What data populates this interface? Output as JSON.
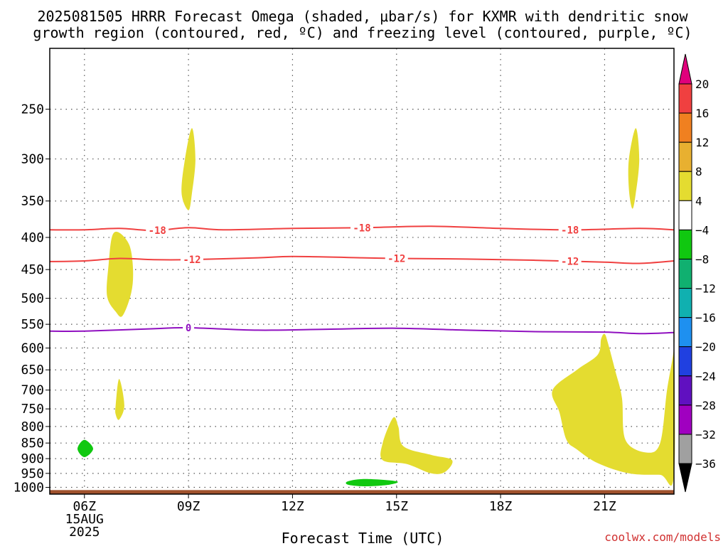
{
  "chart_data": {
    "type": "contour",
    "title_line1": "2025081505 HRRR Forecast Omega (shaded, μbar/s) for KXMR with dendritic snow",
    "title_line2": "growth region (contoured, red, ºC) and freezing level (contoured, purple, ºC)",
    "xlabel": "Forecast Time (UTC)",
    "ylabel": "",
    "watermark": "coolwx.com/models",
    "x_ticks": [
      {
        "hour": 6,
        "label": "06Z",
        "sub1": "15AUG",
        "sub2": "2025"
      },
      {
        "hour": 9,
        "label": "09Z",
        "sub1": "",
        "sub2": ""
      },
      {
        "hour": 12,
        "label": "12Z",
        "sub1": "",
        "sub2": ""
      },
      {
        "hour": 15,
        "label": "15Z",
        "sub1": "",
        "sub2": ""
      },
      {
        "hour": 18,
        "label": "18Z",
        "sub1": "",
        "sub2": ""
      },
      {
        "hour": 21,
        "label": "21Z",
        "sub1": "",
        "sub2": ""
      }
    ],
    "x_range_hours": [
      5,
      23
    ],
    "y_ticks_hpa": [
      250,
      300,
      350,
      400,
      450,
      500,
      550,
      600,
      650,
      700,
      750,
      800,
      850,
      900,
      950,
      1000
    ],
    "y_range_hpa": [
      200,
      1025
    ],
    "y_scale": "log",
    "grid": true,
    "colorbar": {
      "labels": [
        "20",
        "16",
        "12",
        "8",
        "4",
        "−4",
        "−8",
        "−12",
        "−16",
        "−20",
        "−24",
        "−28",
        "−32",
        "−36"
      ],
      "colors": [
        "#e0007c",
        "#f04040",
        "#f08020",
        "#e8b030",
        "#e4dc30",
        "#ffffff",
        "#10c810",
        "#10b070",
        "#10b0b0",
        "#1e90f0",
        "#2040e0",
        "#6010c0",
        "#a000c0",
        "#a0a0a0",
        "#000000"
      ]
    },
    "contours": [
      {
        "name": "snow-growth-minus18",
        "label": "-18",
        "color": "#f04040",
        "points": [
          [
            5,
            389
          ],
          [
            6,
            389
          ],
          [
            7,
            387
          ],
          [
            8,
            390
          ],
          [
            9,
            386
          ],
          [
            10,
            389
          ],
          [
            12,
            387
          ],
          [
            14,
            386
          ],
          [
            16,
            384
          ],
          [
            18,
            387
          ],
          [
            20,
            389
          ],
          [
            22,
            387
          ],
          [
            23,
            389
          ]
        ],
        "label_hours": [
          8.1,
          14.0,
          20.0
        ]
      },
      {
        "name": "snow-growth-minus12",
        "label": "-12",
        "color": "#f04040",
        "points": [
          [
            5,
            437
          ],
          [
            6,
            436
          ],
          [
            7,
            432
          ],
          [
            8,
            434
          ],
          [
            9,
            434
          ],
          [
            11,
            431
          ],
          [
            12,
            429
          ],
          [
            14,
            431
          ],
          [
            15,
            432
          ],
          [
            17,
            433
          ],
          [
            19,
            435
          ],
          [
            21,
            438
          ],
          [
            22,
            440
          ],
          [
            23,
            436
          ]
        ],
        "label_hours": [
          9.1,
          15.0,
          20.0
        ]
      },
      {
        "name": "freezing-level",
        "label": "0",
        "color": "#9010c0",
        "points": [
          [
            5,
            564
          ],
          [
            6,
            564
          ],
          [
            8,
            559
          ],
          [
            9,
            557
          ],
          [
            11,
            562
          ],
          [
            13,
            560
          ],
          [
            15,
            558
          ],
          [
            17,
            562
          ],
          [
            19,
            565
          ],
          [
            21,
            566
          ],
          [
            22,
            569
          ],
          [
            23,
            567
          ]
        ],
        "label_hours": [
          9.0
        ]
      }
    ],
    "omega_regions": [
      {
        "name": "omega-positive-region-1",
        "value_band": "4 to 8",
        "color": "#e4dc30",
        "points": [
          [
            8.9,
            300
          ],
          [
            9.1,
            268
          ],
          [
            9.2,
            300
          ],
          [
            9.1,
            340
          ],
          [
            9.0,
            362
          ],
          [
            8.8,
            340
          ]
        ]
      },
      {
        "name": "omega-positive-region-2",
        "value_band": "4 to 8",
        "color": "#e4dc30",
        "points": [
          [
            6.8,
            398
          ],
          [
            7.0,
            393
          ],
          [
            7.3,
            412
          ],
          [
            7.4,
            450
          ],
          [
            7.35,
            490
          ],
          [
            7.1,
            533
          ],
          [
            6.9,
            525
          ],
          [
            6.65,
            495
          ],
          [
            6.7,
            440
          ]
        ]
      },
      {
        "name": "omega-positive-region-3",
        "value_band": "4 to 8",
        "color": "#e4dc30",
        "points": [
          [
            6.9,
            740
          ],
          [
            7.0,
            672
          ],
          [
            7.15,
            740
          ],
          [
            7.0,
            780
          ],
          [
            6.9,
            765
          ]
        ]
      },
      {
        "name": "omega-positive-region-4",
        "value_band": "4 to 8",
        "color": "#e4dc30",
        "points": [
          [
            21.7,
            300
          ],
          [
            21.9,
            268
          ],
          [
            22.0,
            300
          ],
          [
            21.9,
            340
          ],
          [
            21.8,
            360
          ],
          [
            21.7,
            335
          ]
        ]
      },
      {
        "name": "omega-positive-region-5",
        "value_band": "4 to 8",
        "color": "#e4dc30",
        "points": [
          [
            14.6,
            850
          ],
          [
            14.9,
            775
          ],
          [
            15.05,
            800
          ],
          [
            15.2,
            860
          ],
          [
            16.0,
            888
          ],
          [
            16.6,
            905
          ],
          [
            16.4,
            945
          ],
          [
            16.0,
            950
          ],
          [
            15.3,
            918
          ],
          [
            14.6,
            905
          ]
        ]
      },
      {
        "name": "omega-positive-region-6",
        "value_band": "4 to 8",
        "color": "#e4dc30",
        "points": [
          [
            19.5,
            700
          ],
          [
            20.2,
            650
          ],
          [
            20.8,
            615
          ],
          [
            20.9,
            580
          ],
          [
            21.0,
            570
          ],
          [
            21.1,
            590
          ],
          [
            21.3,
            650
          ],
          [
            21.5,
            720
          ],
          [
            21.6,
            840
          ],
          [
            22.2,
            880
          ],
          [
            22.6,
            850
          ],
          [
            22.8,
            700
          ],
          [
            23.0,
            600
          ],
          [
            23.2,
            545
          ],
          [
            23.3,
            560
          ],
          [
            23.3,
            955
          ],
          [
            22.6,
            955
          ],
          [
            21.7,
            950
          ],
          [
            20.8,
            915
          ],
          [
            20.2,
            870
          ],
          [
            19.9,
            840
          ],
          [
            19.7,
            760
          ]
        ]
      },
      {
        "name": "omega-negative-region-1",
        "value_band": "-4 to -8",
        "color": "#10c810",
        "points": [
          [
            6.0,
            840
          ],
          [
            6.25,
            868
          ],
          [
            6.0,
            895
          ],
          [
            5.8,
            868
          ]
        ]
      },
      {
        "name": "omega-negative-region-2",
        "value_band": "-4 to -8",
        "color": "#10c810",
        "points": [
          [
            13.6,
            978
          ],
          [
            14.1,
            970
          ],
          [
            15.0,
            978
          ],
          [
            14.8,
            990
          ],
          [
            14.1,
            996
          ],
          [
            13.6,
            990
          ]
        ]
      }
    ],
    "ground": {
      "color": "#a0522d",
      "top_hpa": 1010
    }
  }
}
